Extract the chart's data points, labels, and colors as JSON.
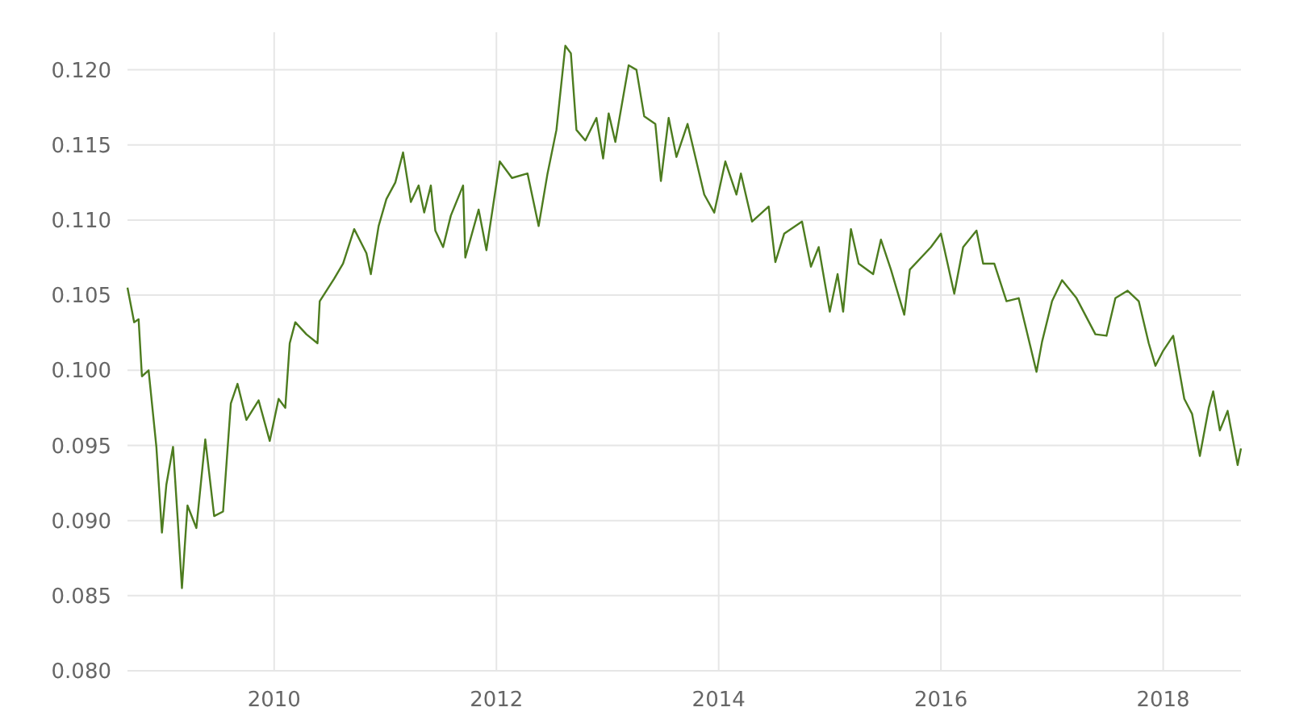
{
  "chart_data": {
    "type": "line",
    "xlim": [
      2008.68,
      2018.7
    ],
    "xticks": [
      2010,
      2012,
      2014,
      2016,
      2018
    ],
    "ylim": [
      0.08,
      0.1225
    ],
    "yticks": [
      {
        "value": 0.08,
        "label": "0.080"
      },
      {
        "value": 0.085,
        "label": "0.085"
      },
      {
        "value": 0.09,
        "label": "0.090"
      },
      {
        "value": 0.095,
        "label": "0.095"
      },
      {
        "value": 0.1,
        "label": "0.100"
      },
      {
        "value": 0.105,
        "label": "0.105"
      },
      {
        "value": 0.11,
        "label": "0.110"
      },
      {
        "value": 0.115,
        "label": "0.115"
      },
      {
        "value": 0.12,
        "label": "0.120"
      }
    ],
    "grid": true,
    "marker": "none",
    "line_style": "solid",
    "series": [
      {
        "color": "#4d7c1f",
        "x": [
          2008.68,
          2008.74,
          2008.78,
          2008.81,
          2008.87,
          2008.94,
          2008.99,
          2009.03,
          2009.09,
          2009.13,
          2009.17,
          2009.22,
          2009.3,
          2009.38,
          2009.46,
          2009.54,
          2009.61,
          2009.67,
          2009.75,
          2009.86,
          2009.96,
          2010.04,
          2010.1,
          2010.14,
          2010.19,
          2010.29,
          2010.39,
          2010.41,
          2010.54,
          2010.62,
          2010.72,
          2010.83,
          2010.87,
          2010.94,
          2011.01,
          2011.09,
          2011.16,
          2011.23,
          2011.3,
          2011.35,
          2011.41,
          2011.45,
          2011.52,
          2011.59,
          2011.7,
          2011.72,
          2011.84,
          2011.91,
          2012.03,
          2012.14,
          2012.28,
          2012.38,
          2012.46,
          2012.54,
          2012.62,
          2012.67,
          2012.72,
          2012.8,
          2012.9,
          2012.96,
          2013.01,
          2013.07,
          2013.19,
          2013.26,
          2013.33,
          2013.43,
          2013.48,
          2013.55,
          2013.62,
          2013.72,
          2013.87,
          2013.96,
          2014.06,
          2014.16,
          2014.2,
          2014.3,
          2014.45,
          2014.51,
          2014.59,
          2014.75,
          2014.83,
          2014.9,
          2015.0,
          2015.07,
          2015.12,
          2015.19,
          2015.26,
          2015.39,
          2015.46,
          2015.55,
          2015.67,
          2015.72,
          2015.91,
          2016.0,
          2016.12,
          2016.2,
          2016.32,
          2016.38,
          2016.48,
          2016.59,
          2016.7,
          2016.86,
          2016.91,
          2017.0,
          2017.09,
          2017.22,
          2017.39,
          2017.49,
          2017.57,
          2017.68,
          2017.78,
          2017.87,
          2017.93,
          2018.0,
          2018.09,
          2018.19,
          2018.26,
          2018.33,
          2018.41,
          2018.45,
          2018.51,
          2018.58,
          2018.67,
          2018.7
        ],
        "values": [
          0.1055,
          0.1032,
          0.1034,
          0.0996,
          0.1,
          0.0949,
          0.0892,
          0.0924,
          0.0949,
          0.0903,
          0.0855,
          0.091,
          0.0895,
          0.0954,
          0.0903,
          0.0906,
          0.0978,
          0.0991,
          0.0967,
          0.098,
          0.0953,
          0.0981,
          0.0975,
          0.1018,
          0.1032,
          0.1024,
          0.1018,
          0.1046,
          0.1061,
          0.1071,
          0.1094,
          0.1078,
          0.1064,
          0.1096,
          0.1114,
          0.1125,
          0.1145,
          0.1112,
          0.1123,
          0.1105,
          0.1123,
          0.1093,
          0.1082,
          0.1103,
          0.1123,
          0.1075,
          0.1107,
          0.108,
          0.1139,
          0.1128,
          0.1131,
          0.1096,
          0.1131,
          0.116,
          0.1216,
          0.1211,
          0.116,
          0.1153,
          0.1168,
          0.1141,
          0.1171,
          0.1152,
          0.1203,
          0.12,
          0.1169,
          0.1164,
          0.1126,
          0.1168,
          0.1142,
          0.1164,
          0.1117,
          0.1105,
          0.1139,
          0.1117,
          0.1131,
          0.1099,
          0.1109,
          0.1072,
          0.1091,
          0.1099,
          0.1069,
          0.1082,
          0.1039,
          0.1064,
          0.1039,
          0.1094,
          0.1071,
          0.1064,
          0.1087,
          0.1067,
          0.1037,
          0.1067,
          0.1082,
          0.1091,
          0.1051,
          0.1082,
          0.1093,
          0.1071,
          0.1071,
          0.1046,
          0.1048,
          0.0999,
          0.1019,
          0.1046,
          0.106,
          0.1048,
          0.1024,
          0.1023,
          0.1048,
          0.1053,
          0.1046,
          0.1018,
          0.1003,
          0.1013,
          0.1023,
          0.0981,
          0.0971,
          0.0943,
          0.0975,
          0.0986,
          0.096,
          0.0973,
          0.0937,
          0.0948
        ]
      }
    ]
  }
}
